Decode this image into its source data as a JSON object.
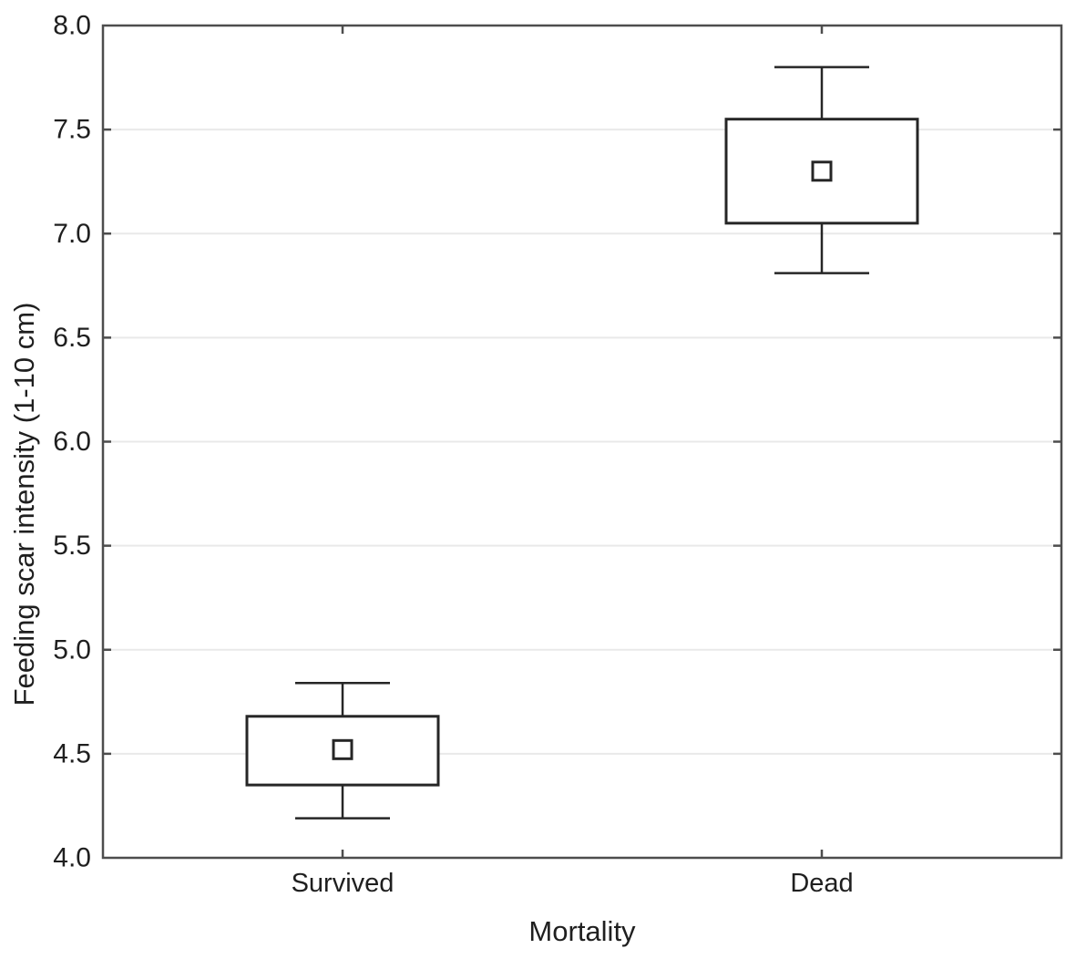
{
  "figure": {
    "background": "#ffffff"
  },
  "chart_data": {
    "type": "boxplot",
    "title": "",
    "xlabel": "Mortality",
    "ylabel": "Feeding scar intensity (1-10 cm)",
    "categories": [
      "Survived",
      "Dead"
    ],
    "ylim": [
      4.0,
      8.0
    ],
    "ytick_step": 0.5,
    "yticks": [
      4.0,
      4.5,
      5.0,
      5.5,
      6.0,
      6.5,
      7.0,
      7.5,
      8.0
    ],
    "ytick_labels": [
      "4.0",
      "4.5",
      "5.0",
      "5.5",
      "6.0",
      "6.5",
      "7.0",
      "7.5",
      "8.0"
    ],
    "grid": "horizontal",
    "legend_position": "none",
    "series": [
      {
        "category": "Survived",
        "mean": 4.52,
        "box_low": 4.35,
        "box_high": 4.68,
        "whisker_low": 4.19,
        "whisker_high": 4.84
      },
      {
        "category": "Dead",
        "mean": 7.3,
        "box_low": 7.05,
        "box_high": 7.55,
        "whisker_low": 6.81,
        "whisker_high": 7.8
      }
    ]
  },
  "style": {
    "frame_color": "#4d4d4d",
    "box_line_color": "#262626",
    "grid_color": "#e9e9e9",
    "text_color": "#1f1f1f",
    "box_fill": "#ffffff"
  }
}
